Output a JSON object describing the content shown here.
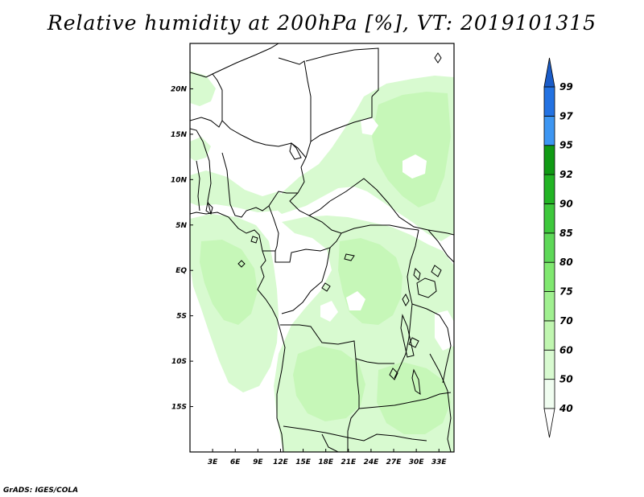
{
  "title": "Relative humidity at 200hPa [%], VT: 2019101315",
  "credit": "GrADS: IGES/COLA",
  "map": {
    "lon_range": [
      0,
      35
    ],
    "lat_range": [
      -20,
      25
    ],
    "lon_ticks": [
      "3E",
      "6E",
      "9E",
      "12E",
      "15E",
      "18E",
      "21E",
      "24E",
      "27E",
      "30E",
      "33E"
    ],
    "lat_ticks": [
      "20N",
      "15N",
      "10N",
      "5N",
      "EQ",
      "5S",
      "10S",
      "15S"
    ]
  },
  "colorbar": {
    "levels": [
      "40",
      "50",
      "60",
      "70",
      "75",
      "80",
      "85",
      "90",
      "92",
      "95",
      "97",
      "99"
    ],
    "colors": [
      "#f0fdf0",
      "#d8fad0",
      "#c0f6b0",
      "#a0f090",
      "#80e870",
      "#5ed858",
      "#3ec83c",
      "#22b424",
      "#109a14",
      "#3d96f2",
      "#2372e2",
      "#1652cc"
    ],
    "under_color": "#ffffff",
    "over_color": "#1a5cc8"
  },
  "field": {
    "shade_colors": [
      "#d8fad0",
      "#c8f8bc",
      "#bcf4ac"
    ]
  }
}
